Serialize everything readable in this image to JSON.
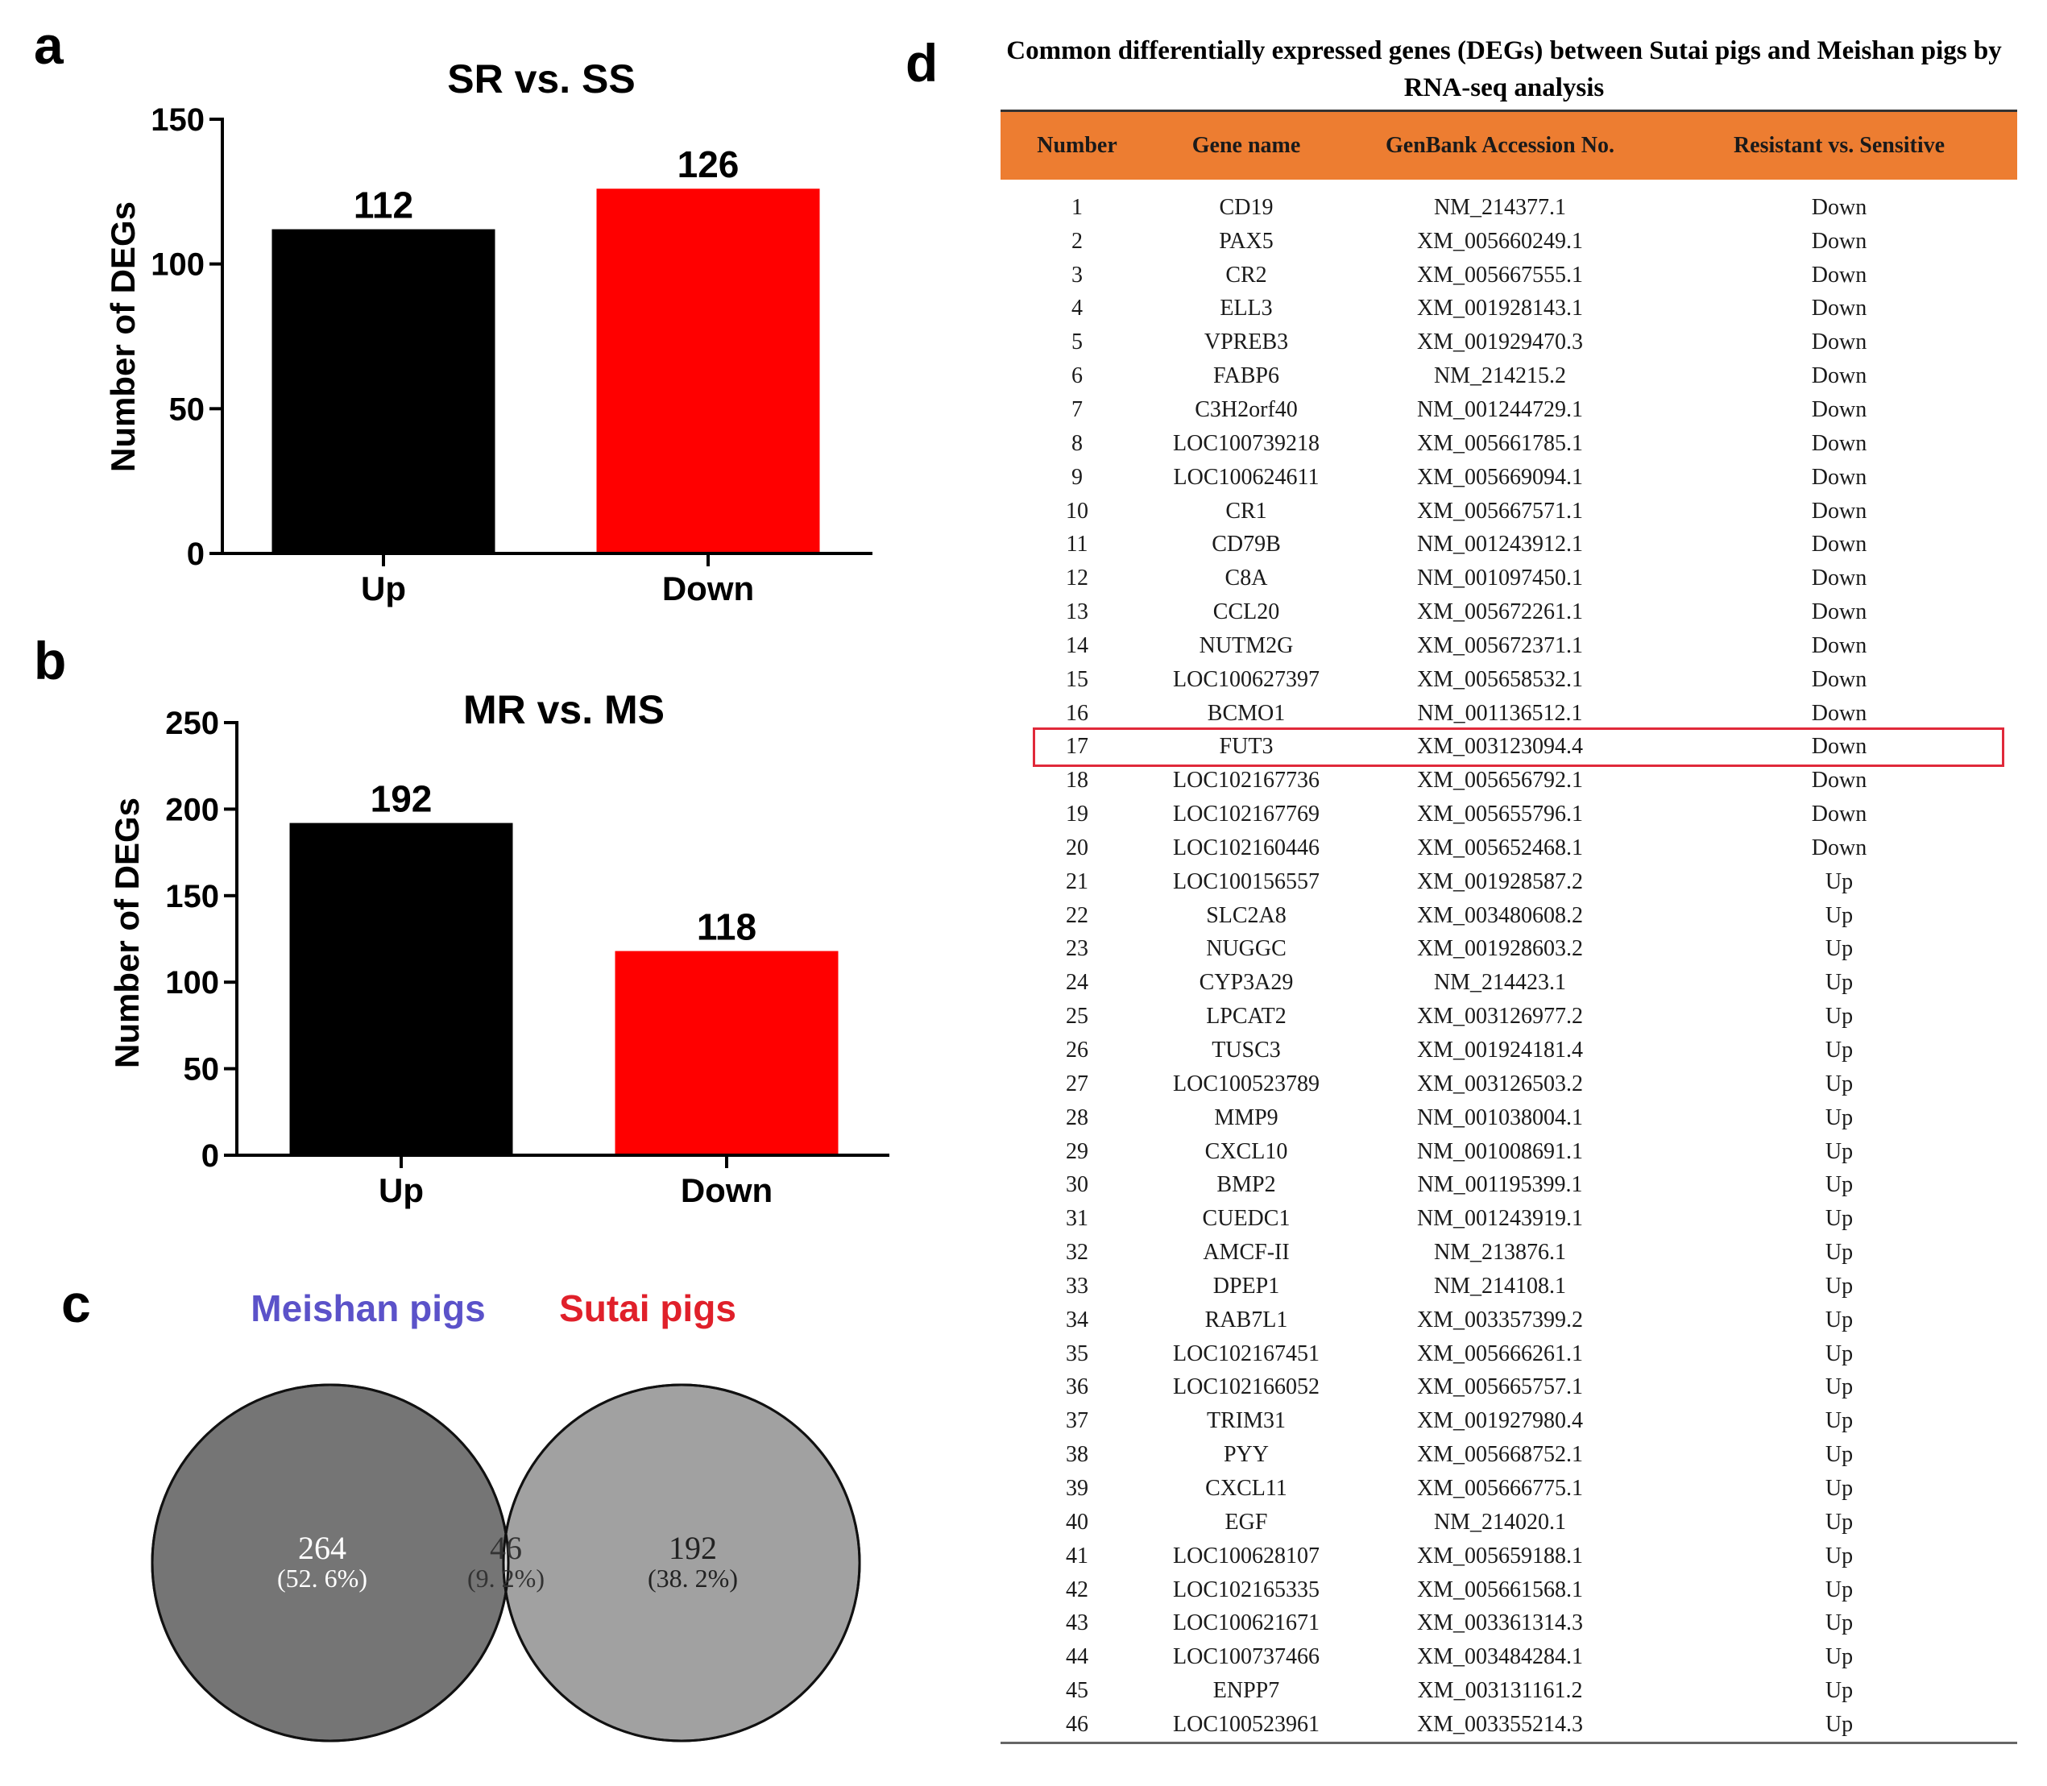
{
  "panels": {
    "a": "a",
    "b": "b",
    "c": "c",
    "d": "d"
  },
  "chart_data": [
    {
      "type": "bar",
      "panel": "a",
      "title": "SR vs. SS",
      "categories": [
        "Up",
        "Down"
      ],
      "values": [
        112,
        126
      ],
      "colors": [
        "#000000",
        "#ff0000"
      ],
      "xlabel": "",
      "ylabel": "Number of DEGs",
      "ylim": [
        0,
        150
      ],
      "yticks": [
        0,
        50,
        100,
        150
      ],
      "data_labels": [
        "112",
        "126"
      ]
    },
    {
      "type": "bar",
      "panel": "b",
      "title": "MR vs. MS",
      "categories": [
        "Up",
        "Down"
      ],
      "values": [
        192,
        118
      ],
      "colors": [
        "#000000",
        "#ff0000"
      ],
      "xlabel": "",
      "ylabel": "Number of DEGs",
      "ylim": [
        0,
        250
      ],
      "yticks": [
        0,
        50,
        100,
        150,
        200,
        250
      ],
      "data_labels": [
        "192",
        "118"
      ]
    },
    {
      "type": "venn",
      "panel": "c",
      "sets": [
        {
          "name": "Meishan pigs",
          "color": "#5b52c9",
          "only_value": "264",
          "only_pct": "(52. 6%)"
        },
        {
          "name": "Sutai pigs",
          "color": "#e0202a",
          "only_value": "192",
          "only_pct": "(38. 2%)"
        }
      ],
      "intersection": {
        "value": "46",
        "pct": "(9. 2%)"
      }
    },
    {
      "type": "table",
      "panel": "d",
      "title": "Common differentially expressed genes (DEGs) between Sutai pigs and Meishan pigs by RNA-seq analysis",
      "columns": [
        "Number",
        "Gene name",
        "GenBank Accession No.",
        "Resistant vs. Sensitive"
      ],
      "highlight_row": 17,
      "rows": [
        [
          "1",
          "CD19",
          "NM_214377.1",
          "Down"
        ],
        [
          "2",
          "PAX5",
          "XM_005660249.1",
          "Down"
        ],
        [
          "3",
          "CR2",
          "XM_005667555.1",
          "Down"
        ],
        [
          "4",
          "ELL3",
          "XM_001928143.1",
          "Down"
        ],
        [
          "5",
          "VPREB3",
          "XM_001929470.3",
          "Down"
        ],
        [
          "6",
          "FABP6",
          "NM_214215.2",
          "Down"
        ],
        [
          "7",
          "C3H2orf40",
          "NM_001244729.1",
          "Down"
        ],
        [
          "8",
          "LOC100739218",
          "XM_005661785.1",
          "Down"
        ],
        [
          "9",
          "LOC100624611",
          "XM_005669094.1",
          "Down"
        ],
        [
          "10",
          "CR1",
          "XM_005667571.1",
          "Down"
        ],
        [
          "11",
          "CD79B",
          "NM_001243912.1",
          "Down"
        ],
        [
          "12",
          "C8A",
          "NM_001097450.1",
          "Down"
        ],
        [
          "13",
          "CCL20",
          "XM_005672261.1",
          "Down"
        ],
        [
          "14",
          "NUTM2G",
          "XM_005672371.1",
          "Down"
        ],
        [
          "15",
          "LOC100627397",
          "XM_005658532.1",
          "Down"
        ],
        [
          "16",
          "BCMO1",
          "NM_001136512.1",
          "Down"
        ],
        [
          "17",
          "FUT3",
          "XM_003123094.4",
          "Down"
        ],
        [
          "18",
          "LOC102167736",
          "XM_005656792.1",
          "Down"
        ],
        [
          "19",
          "LOC102167769",
          "XM_005655796.1",
          "Down"
        ],
        [
          "20",
          "LOC102160446",
          "XM_005652468.1",
          "Down"
        ],
        [
          "21",
          "LOC100156557",
          "XM_001928587.2",
          "Up"
        ],
        [
          "22",
          "SLC2A8",
          "XM_003480608.2",
          "Up"
        ],
        [
          "23",
          "NUGGC",
          "XM_001928603.2",
          "Up"
        ],
        [
          "24",
          "CYP3A29",
          "NM_214423.1",
          "Up"
        ],
        [
          "25",
          "LPCAT2",
          "XM_003126977.2",
          "Up"
        ],
        [
          "26",
          "TUSC3",
          "XM_001924181.4",
          "Up"
        ],
        [
          "27",
          "LOC100523789",
          "XM_003126503.2",
          "Up"
        ],
        [
          "28",
          "MMP9",
          "NM_001038004.1",
          "Up"
        ],
        [
          "29",
          "CXCL10",
          "NM_001008691.1",
          "Up"
        ],
        [
          "30",
          "BMP2",
          "NM_001195399.1",
          "Up"
        ],
        [
          "31",
          "CUEDC1",
          "NM_001243919.1",
          "Up"
        ],
        [
          "32",
          "AMCF-II",
          "NM_213876.1",
          "Up"
        ],
        [
          "33",
          "DPEP1",
          "NM_214108.1",
          "Up"
        ],
        [
          "34",
          "RAB7L1",
          "XM_003357399.2",
          "Up"
        ],
        [
          "35",
          "LOC102167451",
          "XM_005666261.1",
          "Up"
        ],
        [
          "36",
          "LOC102166052",
          "XM_005665757.1",
          "Up"
        ],
        [
          "37",
          "TRIM31",
          "XM_001927980.4",
          "Up"
        ],
        [
          "38",
          "PYY",
          "XM_005668752.1",
          "Up"
        ],
        [
          "39",
          "CXCL11",
          "XM_005666775.1",
          "Up"
        ],
        [
          "40",
          "EGF",
          "NM_214020.1",
          "Up"
        ],
        [
          "41",
          "LOC100628107",
          "XM_005659188.1",
          "Up"
        ],
        [
          "42",
          "LOC102165335",
          "XM_005661568.1",
          "Up"
        ],
        [
          "43",
          "LOC100621671",
          "XM_003361314.3",
          "Up"
        ],
        [
          "44",
          "LOC100737466",
          "XM_003484284.1",
          "Up"
        ],
        [
          "45",
          "ENPP7",
          "XM_003131161.2",
          "Up"
        ],
        [
          "46",
          "LOC100523961",
          "XM_003355214.3",
          "Up"
        ]
      ]
    }
  ]
}
